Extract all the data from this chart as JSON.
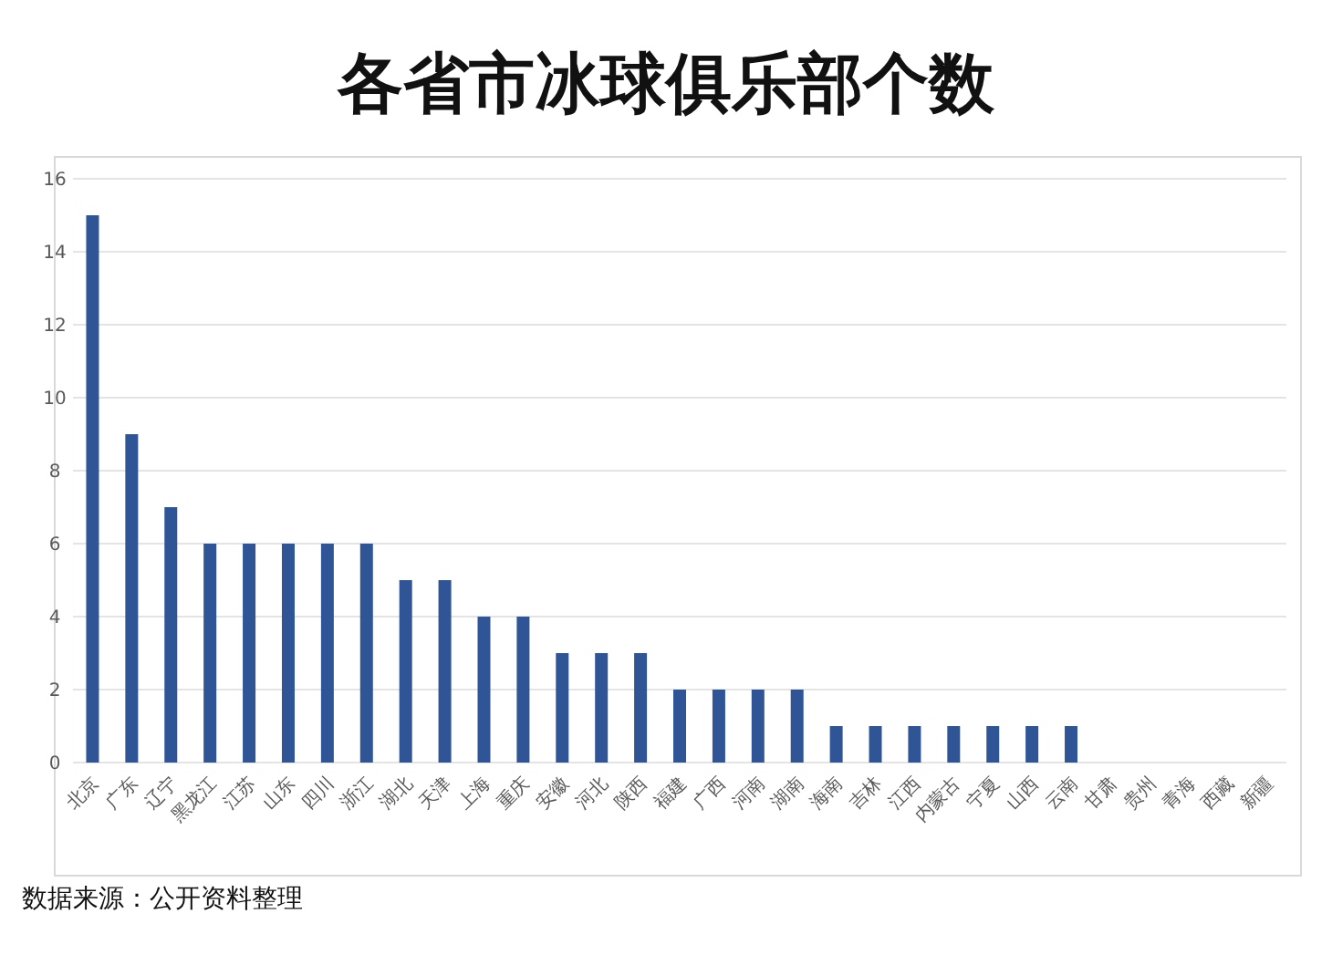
{
  "chart_data": {
    "type": "bar",
    "title": "各省市冰球俱乐部个数",
    "categories": [
      "北京",
      "广东",
      "辽宁",
      "黑龙江",
      "江苏",
      "山东",
      "四川",
      "浙江",
      "湖北",
      "天津",
      "上海",
      "重庆",
      "安徽",
      "河北",
      "陕西",
      "福建",
      "广西",
      "河南",
      "湖南",
      "海南",
      "吉林",
      "江西",
      "内蒙古",
      "宁夏",
      "山西",
      "云南",
      "甘肃",
      "贵州",
      "青海",
      "西藏",
      "新疆"
    ],
    "values": [
      15,
      9,
      7,
      6,
      6,
      6,
      6,
      6,
      5,
      5,
      4,
      4,
      3,
      3,
      3,
      2,
      2,
      2,
      2,
      1,
      1,
      1,
      1,
      1,
      1,
      1,
      0,
      0,
      0,
      0,
      0
    ],
    "color": "#2f5597",
    "ylim": [
      0,
      16
    ],
    "yticks": [
      0,
      2,
      4,
      6,
      8,
      10,
      12,
      14,
      16
    ],
    "grid": "y",
    "annotations": [
      "数据来源：公开资料整理"
    ]
  }
}
